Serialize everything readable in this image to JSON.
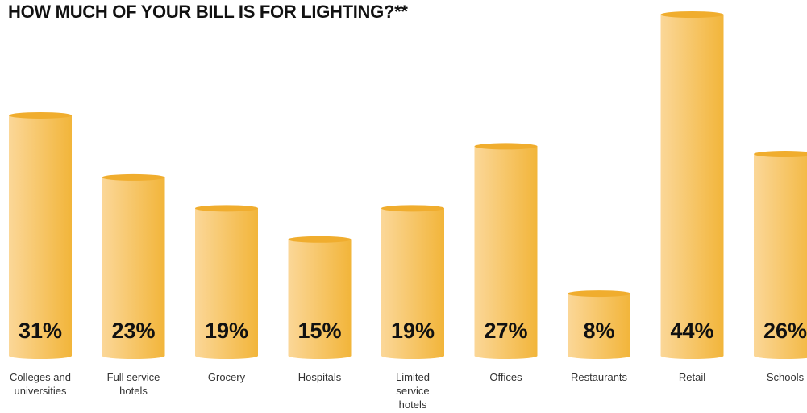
{
  "chart_data": {
    "type": "bar",
    "title": "HOW MUCH OF YOUR BILL IS FOR LIGHTING?**",
    "categories": [
      "Colleges and universities",
      "Full service hotels",
      "Grocery",
      "Hospitals",
      "Limited service hotels",
      "Offices",
      "Restaurants",
      "Retail",
      "Schools"
    ],
    "category_lines": [
      [
        "Colleges and",
        "universities"
      ],
      [
        "Full service",
        "hotels"
      ],
      [
        "Grocery"
      ],
      [
        "Hospitals"
      ],
      [
        "Limited",
        "service",
        "hotels"
      ],
      [
        "Offices"
      ],
      [
        "Restaurants"
      ],
      [
        "Retail"
      ],
      [
        "Schools"
      ]
    ],
    "values": [
      31,
      23,
      19,
      15,
      19,
      27,
      8,
      44,
      26
    ],
    "value_labels": [
      "31%",
      "23%",
      "19%",
      "15%",
      "19%",
      "27%",
      "8%",
      "44%",
      "26%"
    ],
    "unit": "%",
    "ylim": [
      0,
      44
    ],
    "grid": false,
    "legend": "none",
    "colors": {
      "bar_light": "#fbd798",
      "bar_dark": "#f2b53a",
      "bar_top": "#f0ad2e"
    }
  }
}
